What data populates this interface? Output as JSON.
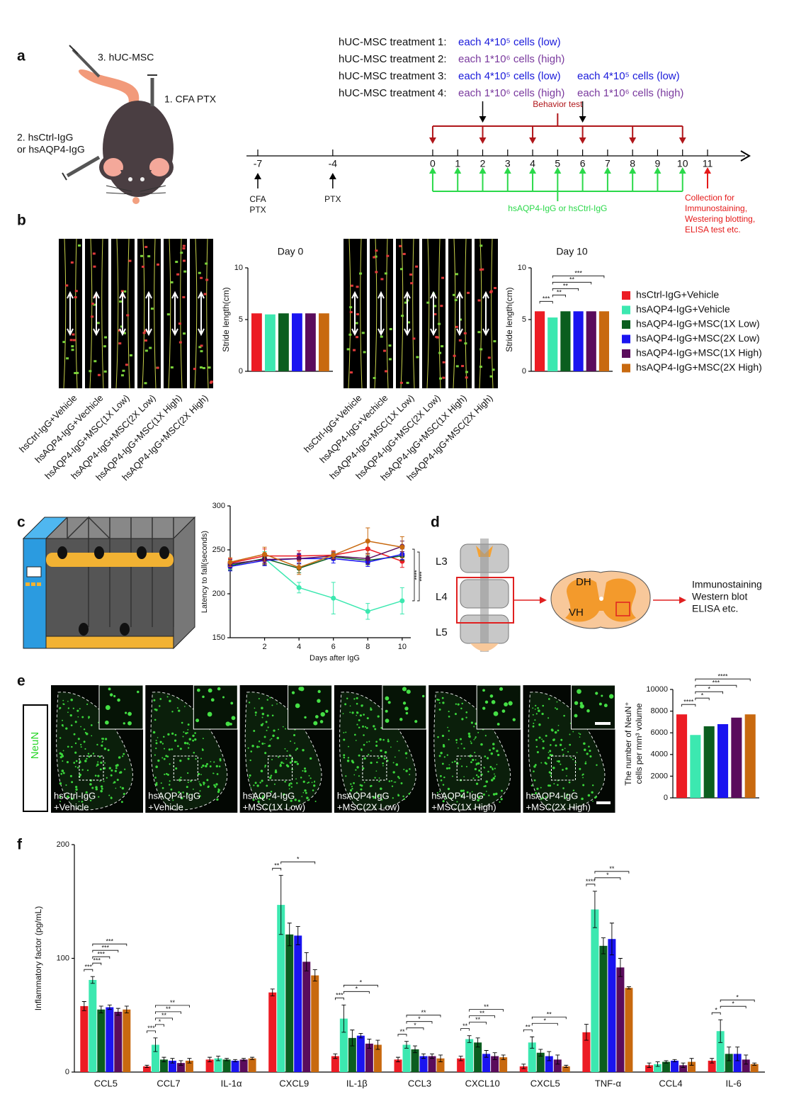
{
  "panel_labels": [
    "a",
    "b",
    "c",
    "d",
    "e",
    "f"
  ],
  "legend": {
    "items": [
      {
        "name": "hsCtrl-IgG+Vehicle",
        "color": "#ec1c24"
      },
      {
        "name": "hsAQP4-IgG+Vehicle",
        "color": "#3ce8b0"
      },
      {
        "name": "hsAQP4-IgG+MSC(1X Low)",
        "color": "#0b5e1f"
      },
      {
        "name": "hsAQP4-IgG+MSC(2X Low)",
        "color": "#1a14f0"
      },
      {
        "name": "hsAQP4-IgG+MSC(1X High)",
        "color": "#5a0c5c"
      },
      {
        "name": "hsAQP4-IgG+MSC(2X High)",
        "color": "#c8690f"
      }
    ]
  },
  "panel_a": {
    "mouse_labels": [
      "3. hUC-MSC",
      "1. CFA PTX",
      "2. hsCtrl-IgG",
      "or hsAQP4-IgG"
    ],
    "treatments": [
      {
        "label": "hUC-MSC treatment 1:",
        "doses": [
          {
            "text": "each 4*10⁵ cells (low)",
            "color": "#1a1adb"
          }
        ]
      },
      {
        "label": "hUC-MSC treatment 2:",
        "doses": [
          {
            "text": "each 1*10⁶ cells (high)",
            "color": "#7a3a9e"
          }
        ]
      },
      {
        "label": "hUC-MSC treatment 3:",
        "doses": [
          {
            "text": "each 4*10⁵ cells (low)",
            "color": "#1a1adb"
          },
          {
            "text": "each 4*10⁵ cells (low)",
            "color": "#1a1adb"
          }
        ]
      },
      {
        "label": "hUC-MSC treatment 4:",
        "doses": [
          {
            "text": "each 1*10⁶ cells (high)",
            "color": "#7a3a9e"
          },
          {
            "text": "each 1*10⁶ cells (high)",
            "color": "#7a3a9e"
          }
        ]
      }
    ],
    "timeline": {
      "xlim": [
        -7,
        11
      ],
      "ticks": [
        -7,
        -4,
        0,
        1,
        2,
        3,
        4,
        5,
        6,
        7,
        8,
        9,
        10,
        11
      ],
      "treatment_days": [
        2,
        6
      ],
      "behavior_days": [
        0,
        2,
        4,
        6,
        8,
        10
      ],
      "behavior_label": "Behavior test",
      "injection_days": [
        0,
        1,
        2,
        3,
        4,
        5,
        6,
        7,
        8,
        9,
        10
      ],
      "injection_label": "hsAQP4-IgG or hsCtrl-IgG",
      "collection_day": 11,
      "collection_label": [
        "Collection for",
        "Immunostaining,",
        "Westering blotting,",
        "ELISA test etc."
      ],
      "day_notes": [
        {
          "day": -7,
          "lines": [
            "CFA",
            "PTX"
          ]
        },
        {
          "day": -4,
          "lines": [
            "PTX"
          ]
        }
      ]
    }
  },
  "panel_b": {
    "image_sets": [
      [
        "hsCtrl-IgG+Vehicle",
        "hsAQP4-IgG+Vechicle",
        "hsAQP4-IgG+MSC(1X Low)",
        "hsAQP4-IgG+MSC(2X Low)",
        "hsAQP4-IgG+MSC(1X High)",
        "hsAQP4-IgG+MSC(2X High)"
      ],
      [
        "hsCtrl-IgG+Vehicle",
        "hsAQP4-IgG+Vechicle",
        "hsAQP4-IgG+MSC(1X Low)",
        "hsAQP4-IgG+MSC(2X Low)",
        "hsAQP4-IgG+MSC(1X High)",
        "hsAQP4-IgG+MSC(2X High)"
      ]
    ]
  },
  "panel_d": {
    "levels": [
      "L3",
      "L4",
      "L5"
    ],
    "regions": [
      "DH",
      "VH"
    ],
    "outputs": [
      "Immunostaining",
      "Western blot",
      "ELISA etc."
    ]
  },
  "panel_e": {
    "stain": "NeuN",
    "image_labels": [
      [
        "hsCtrl-IgG",
        "+Vehicle"
      ],
      [
        "hsAQP4-IgG",
        "+Vehicle"
      ],
      [
        "hsAQP4-IgG",
        "+MSC(1X Low)"
      ],
      [
        "hsAQP4-IgG",
        "+MSC(2X Low)"
      ],
      [
        "hsAQP4-IgG",
        "+MSC(1X High)"
      ],
      [
        "hsAQP4-IgG",
        "+MSC(2X High)"
      ]
    ]
  },
  "chart_data": [
    {
      "type": "bar",
      "title": "Day 0",
      "ylabel": "Stride length(cm)",
      "values": [
        5.6,
        5.5,
        5.6,
        5.6,
        5.6,
        5.6
      ],
      "ylim": [
        0,
        10
      ],
      "yticks": [
        0,
        5,
        10
      ]
    },
    {
      "type": "bar",
      "title": "Day 10",
      "ylabel": "Stride length(cm)",
      "values": [
        5.8,
        5.2,
        5.8,
        5.8,
        5.8,
        5.8
      ],
      "ylim": [
        0,
        10
      ],
      "yticks": [
        0,
        5,
        10
      ],
      "significance": [
        {
          "pair": [
            0,
            1
          ],
          "text": "***"
        },
        {
          "pair": [
            1,
            2
          ],
          "text": "**"
        },
        {
          "pair": [
            1,
            3
          ],
          "text": "**"
        },
        {
          "pair": [
            1,
            4
          ],
          "text": "**"
        },
        {
          "pair": [
            1,
            5
          ],
          "text": "***"
        }
      ]
    },
    {
      "type": "line",
      "xlabel": "Days after IgG",
      "ylabel": "Latency to fall(seconds)",
      "x": [
        0,
        2,
        4,
        6,
        8,
        10
      ],
      "xlim": [
        0,
        10.5
      ],
      "xticks": [
        2,
        4,
        6,
        8,
        10
      ],
      "ylim": [
        150,
        300
      ],
      "yticks": [
        150,
        200,
        250,
        300
      ],
      "series": [
        {
          "values": [
            235,
            243,
            243,
            244,
            251,
            237
          ],
          "errors": [
            5,
            8,
            6,
            5,
            8,
            7
          ]
        },
        {
          "values": [
            233,
            240,
            207,
            195,
            180,
            192
          ],
          "errors": [
            5,
            8,
            6,
            18,
            9,
            15
          ]
        },
        {
          "values": [
            232,
            240,
            229,
            242,
            238,
            243
          ],
          "errors": [
            5,
            6,
            5,
            4,
            5,
            5
          ]
        },
        {
          "values": [
            231,
            238,
            240,
            240,
            236,
            245
          ],
          "errors": [
            5,
            6,
            5,
            5,
            5,
            6
          ]
        },
        {
          "values": [
            234,
            239,
            240,
            243,
            240,
            254
          ],
          "errors": [
            5,
            6,
            6,
            4,
            6,
            6
          ]
        },
        {
          "values": [
            236,
            245,
            230,
            244,
            260,
            253
          ],
          "errors": [
            5,
            8,
            8,
            4,
            15,
            12
          ]
        }
      ],
      "annotations": [
        "****",
        "****"
      ]
    },
    {
      "type": "bar",
      "ylabel": [
        "The number of NeuN⁺",
        "cells per mm³ volume"
      ],
      "values": [
        7700,
        5800,
        6600,
        6800,
        7400,
        7700
      ],
      "ylim": [
        0,
        10000
      ],
      "yticks": [
        0,
        2000,
        4000,
        6000,
        8000,
        10000
      ],
      "significance": [
        {
          "pair": [
            0,
            1
          ],
          "text": "****"
        },
        {
          "pair": [
            1,
            2
          ],
          "text": "*"
        },
        {
          "pair": [
            1,
            3
          ],
          "text": "*"
        },
        {
          "pair": [
            1,
            4
          ],
          "text": "***"
        },
        {
          "pair": [
            1,
            5
          ],
          "text": "****"
        }
      ]
    },
    {
      "type": "grouped_bar",
      "ylabel": "Inflammatory factor (pg/mL)",
      "categories": [
        "CCL5",
        "CCL7",
        "IL-1α",
        "CXCL9",
        "IL-1β",
        "CCL3",
        "CXCL10",
        "CXCL5",
        "TNF-α",
        "CCL4",
        "IL-6"
      ],
      "ylim": [
        0,
        200
      ],
      "yticks": [
        0,
        100,
        200
      ],
      "series": [
        {
          "values": [
            58,
            5,
            11,
            70,
            14,
            11,
            12,
            5,
            35,
            6,
            10
          ],
          "errors": [
            4,
            1,
            2,
            3,
            2,
            2,
            2,
            2,
            7,
            2,
            2
          ]
        },
        {
          "values": [
            81,
            24,
            12,
            147,
            47,
            24,
            29,
            26,
            143,
            7,
            36
          ],
          "errors": [
            3,
            6,
            2,
            26,
            12,
            3,
            3,
            5,
            16,
            2,
            10
          ]
        },
        {
          "values": [
            55,
            11,
            11,
            121,
            30,
            20,
            26,
            17,
            111,
            9,
            16
          ],
          "errors": [
            3,
            2,
            1,
            10,
            7,
            3,
            4,
            3,
            7,
            1,
            6
          ]
        },
        {
          "values": [
            57,
            10,
            10,
            120,
            32,
            14,
            16,
            14,
            117,
            10,
            16
          ],
          "errors": [
            2,
            2,
            1,
            8,
            2,
            2,
            3,
            4,
            14,
            1,
            6
          ]
        },
        {
          "values": [
            53,
            8,
            11,
            97,
            25,
            14,
            14,
            11,
            92,
            6,
            11
          ],
          "errors": [
            3,
            2,
            1,
            8,
            4,
            2,
            3,
            4,
            8,
            2,
            4
          ]
        },
        {
          "values": [
            55,
            10,
            12,
            85,
            24,
            12,
            13,
            5,
            74,
            9,
            7
          ],
          "errors": [
            3,
            2,
            1,
            5,
            4,
            3,
            2,
            1,
            1,
            3,
            1
          ]
        }
      ],
      "significance": [
        {
          "category": 0,
          "pair": [
            0,
            1
          ],
          "text": "***"
        },
        {
          "category": 0,
          "pair": [
            1,
            2
          ],
          "text": "***"
        },
        {
          "category": 0,
          "pair": [
            1,
            3
          ],
          "text": "***"
        },
        {
          "category": 0,
          "pair": [
            1,
            4
          ],
          "text": "***"
        },
        {
          "category": 0,
          "pair": [
            1,
            5
          ],
          "text": "***"
        },
        {
          "category": 1,
          "pair": [
            0,
            1
          ],
          "text": "***"
        },
        {
          "category": 1,
          "pair": [
            1,
            2
          ],
          "text": "*"
        },
        {
          "category": 1,
          "pair": [
            1,
            3
          ],
          "text": "**"
        },
        {
          "category": 1,
          "pair": [
            1,
            4
          ],
          "text": "**"
        },
        {
          "category": 1,
          "pair": [
            1,
            5
          ],
          "text": "**"
        },
        {
          "category": 3,
          "pair": [
            0,
            1
          ],
          "text": "**"
        },
        {
          "category": 3,
          "pair": [
            1,
            5
          ],
          "text": "*"
        },
        {
          "category": 4,
          "pair": [
            0,
            1
          ],
          "text": "***"
        },
        {
          "category": 4,
          "pair": [
            1,
            4
          ],
          "text": "*"
        },
        {
          "category": 4,
          "pair": [
            1,
            5
          ],
          "text": "*"
        },
        {
          "category": 5,
          "pair": [
            0,
            1
          ],
          "text": "**"
        },
        {
          "category": 5,
          "pair": [
            1,
            3
          ],
          "text": "*"
        },
        {
          "category": 5,
          "pair": [
            1,
            4
          ],
          "text": "*"
        },
        {
          "category": 5,
          "pair": [
            1,
            5
          ],
          "text": "**"
        },
        {
          "category": 6,
          "pair": [
            0,
            1
          ],
          "text": "**"
        },
        {
          "category": 6,
          "pair": [
            1,
            3
          ],
          "text": "**"
        },
        {
          "category": 6,
          "pair": [
            1,
            4
          ],
          "text": "**"
        },
        {
          "category": 6,
          "pair": [
            1,
            5
          ],
          "text": "**"
        },
        {
          "category": 7,
          "pair": [
            0,
            1
          ],
          "text": "**"
        },
        {
          "category": 7,
          "pair": [
            1,
            4
          ],
          "text": "*"
        },
        {
          "category": 7,
          "pair": [
            1,
            5
          ],
          "text": "**"
        },
        {
          "category": 8,
          "pair": [
            0,
            1
          ],
          "text": "****"
        },
        {
          "category": 8,
          "pair": [
            1,
            4
          ],
          "text": "*"
        },
        {
          "category": 8,
          "pair": [
            1,
            5
          ],
          "text": "**"
        },
        {
          "category": 10,
          "pair": [
            0,
            1
          ],
          "text": "*"
        },
        {
          "category": 10,
          "pair": [
            1,
            4
          ],
          "text": "*"
        },
        {
          "category": 10,
          "pair": [
            1,
            5
          ],
          "text": "*"
        }
      ]
    }
  ]
}
